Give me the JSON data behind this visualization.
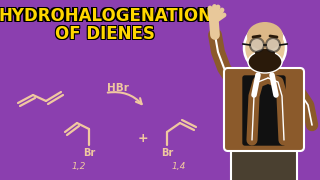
{
  "bg_color": "#8B3FAF",
  "title_line1": "HYDROHALOGENATION",
  "title_line2": "OF DIENES",
  "title_color": "#FFD700",
  "title_stroke_color": "#000000",
  "hbr_label": "HBr",
  "label_12": "1,2",
  "label_14": "1,4",
  "br_label": "Br",
  "plus_label": "+",
  "line_color": "#F0C8A0",
  "line_color2": "#FFFFFF",
  "line_width": 1.6,
  "fig_width": 3.2,
  "fig_height": 1.8,
  "dpi": 100,
  "skin_color": "#E8C89A",
  "jacket_color": "#8B5A2B",
  "beard_color": "#2A1A0A",
  "black": "#111111",
  "pants_color": "#4A4030",
  "white_outline": "#FFFFFF"
}
